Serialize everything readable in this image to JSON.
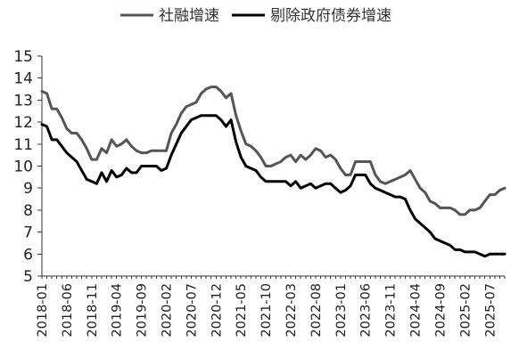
{
  "chart_data": {
    "type": "line",
    "title": "",
    "xlabel": "",
    "ylabel": "",
    "ylim": [
      5,
      15
    ],
    "yticks": [
      5,
      6,
      7,
      8,
      9,
      10,
      11,
      12,
      13,
      14,
      15
    ],
    "x_start": "2018-01",
    "x_tick_labels": [
      "2018-01",
      "2018-06",
      "2018-11",
      "2019-04",
      "2019-09",
      "2020-02",
      "2020-07",
      "2020-12",
      "2021-05",
      "2021-10",
      "2022-03",
      "2022-08",
      "2023-01",
      "2023-06",
      "2023-11",
      "2024-04",
      "2024-09",
      "2025-02",
      "2025-07"
    ],
    "grid": false,
    "legend_position": "top",
    "series": [
      {
        "name": "社融增速",
        "color": "#555555",
        "values": [
          13.4,
          13.3,
          12.6,
          12.6,
          12.2,
          11.7,
          11.5,
          11.5,
          11.2,
          10.8,
          10.3,
          10.3,
          10.8,
          10.6,
          11.2,
          10.9,
          11.0,
          11.2,
          10.9,
          10.7,
          10.6,
          10.6,
          10.7,
          10.7,
          10.7,
          10.7,
          11.5,
          11.9,
          12.4,
          12.7,
          12.8,
          12.9,
          13.3,
          13.5,
          13.6,
          13.6,
          13.4,
          13.1,
          13.3,
          12.3,
          11.6,
          11.0,
          10.9,
          10.7,
          10.4,
          10.0,
          10.0,
          10.1,
          10.2,
          10.4,
          10.5,
          10.2,
          10.5,
          10.3,
          10.5,
          10.8,
          10.7,
          10.4,
          10.5,
          10.3,
          9.9,
          9.6,
          9.6,
          10.2,
          10.2,
          10.2,
          10.2,
          9.6,
          9.3,
          9.2,
          9.3,
          9.4,
          9.5,
          9.6,
          9.8,
          9.4,
          9.0,
          8.8,
          8.4,
          8.3,
          8.1,
          8.1,
          8.1,
          8.0,
          7.8,
          7.8,
          8.0,
          8.0,
          8.1,
          8.4,
          8.7,
          8.7,
          8.9,
          9.0
        ]
      },
      {
        "name": "剔除政府债券增速",
        "color": "#000000",
        "values": [
          11.9,
          11.8,
          11.2,
          11.2,
          10.9,
          10.6,
          10.4,
          10.2,
          9.8,
          9.4,
          9.3,
          9.2,
          9.7,
          9.3,
          9.8,
          9.5,
          9.6,
          9.9,
          9.7,
          9.7,
          10.0,
          10.0,
          10.0,
          10.0,
          9.8,
          9.9,
          10.5,
          11.0,
          11.5,
          11.8,
          12.1,
          12.2,
          12.3,
          12.3,
          12.3,
          12.3,
          12.1,
          11.8,
          12.1,
          11.1,
          10.4,
          10.0,
          9.9,
          9.8,
          9.5,
          9.3,
          9.3,
          9.3,
          9.3,
          9.3,
          9.1,
          9.3,
          9.0,
          9.1,
          9.2,
          9.0,
          9.1,
          9.2,
          9.2,
          9.0,
          8.8,
          8.9,
          9.1,
          9.6,
          9.6,
          9.6,
          9.2,
          9.0,
          8.9,
          8.8,
          8.7,
          8.6,
          8.6,
          8.5,
          8.0,
          7.6,
          7.4,
          7.2,
          7.0,
          6.7,
          6.6,
          6.5,
          6.4,
          6.2,
          6.2,
          6.1,
          6.1,
          6.1,
          6.0,
          5.9,
          6.0,
          6.0,
          6.0,
          6.0
        ]
      }
    ]
  }
}
